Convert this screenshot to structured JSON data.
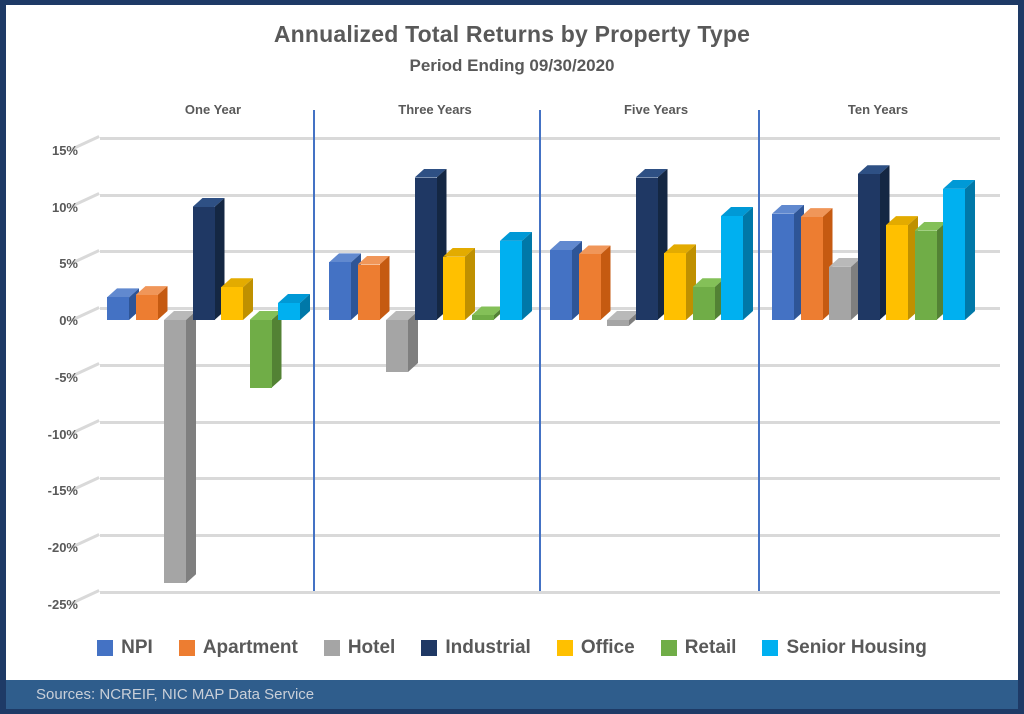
{
  "header": {
    "title": "Annualized Total Returns by Property Type",
    "subtitle": "Period Ending 09/30/2020"
  },
  "colors": {
    "background": "#FFFFFF",
    "border": "#1E3A66",
    "text": "#595959",
    "grid": "#D9D9D9",
    "separator": "#4472C4",
    "footer_bg": "#2F5D8C",
    "footer_text": "#C9CFD8"
  },
  "chart_data": {
    "type": "bar",
    "title": "Annualized Total Returns by Property Type",
    "subtitle": "Period Ending 09/30/2020",
    "groups": [
      "One Year",
      "Three Years",
      "Five Years",
      "Ten Years"
    ],
    "series": [
      {
        "name": "NPI",
        "color": "#4472C4",
        "top": "#6189CF",
        "side": "#2E5597",
        "values": [
          2.0,
          5.1,
          6.2,
          9.4
        ]
      },
      {
        "name": "Apartment",
        "color": "#ED7D31",
        "top": "#F09659",
        "side": "#C55A11",
        "values": [
          2.2,
          4.9,
          5.8,
          9.1
        ]
      },
      {
        "name": "Hotel",
        "color": "#A5A5A5",
        "top": "#B9B9B9",
        "side": "#7F7F7F",
        "values": [
          -23.3,
          -4.6,
          -0.5,
          4.7
        ]
      },
      {
        "name": "Industrial",
        "color": "#1F3864",
        "top": "#2E5084",
        "side": "#142743",
        "values": [
          10.0,
          12.6,
          12.6,
          12.9
        ]
      },
      {
        "name": "Office",
        "color": "#FFC000",
        "top": "#E3AB00",
        "side": "#BF9000",
        "values": [
          2.9,
          5.6,
          5.9,
          8.4
        ]
      },
      {
        "name": "Retail",
        "color": "#70AD47",
        "top": "#84C058",
        "side": "#538234",
        "values": [
          -6.0,
          0.4,
          2.9,
          7.9
        ]
      },
      {
        "name": "Senior Housing",
        "color": "#00B0F0",
        "top": "#0099D6",
        "side": "#0078A8",
        "values": [
          1.5,
          7.0,
          9.2,
          11.6
        ]
      }
    ],
    "yticks": [
      15,
      10,
      5,
      0,
      -5,
      -10,
      -15,
      -20,
      -25
    ],
    "ytick_suffix": "%",
    "ylim": [
      -25,
      15
    ],
    "grid": true,
    "legend_position": "bottom"
  },
  "footer": {
    "sources": "Sources: NCREIF, NIC MAP Data Service"
  }
}
